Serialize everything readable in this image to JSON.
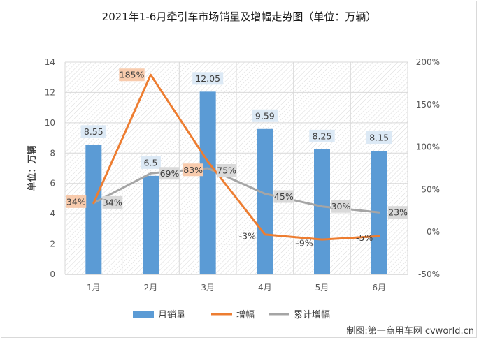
{
  "chart_data": {
    "type": "bar",
    "title": "2021年1-6月牵引车市场销量及增幅走势图（单位：万辆）",
    "ylabel": "单位：万辆",
    "categories": [
      "1月",
      "2月",
      "3月",
      "4月",
      "5月",
      "6月"
    ],
    "ylim": [
      0,
      14
    ],
    "y_ticks": [
      "0",
      "2",
      "4",
      "6",
      "8",
      "10",
      "12",
      "14"
    ],
    "y2lim": [
      -50,
      200
    ],
    "y2_ticks": [
      "-50%",
      "0%",
      "50%",
      "100%",
      "150%",
      "200%"
    ],
    "grid": true,
    "legend_position": "bottom",
    "series": [
      {
        "name": "月销量",
        "type": "bar",
        "axis": "left",
        "color": "#5b9bd5",
        "values": [
          8.55,
          6.5,
          12.05,
          9.59,
          8.25,
          8.15
        ],
        "labels": [
          "8.55",
          "6.5",
          "12.05",
          "9.59",
          "8.25",
          "8.15"
        ],
        "label_bg": "#dce9f5"
      },
      {
        "name": "增幅",
        "type": "line",
        "axis": "right",
        "color": "#ed7d31",
        "values": [
          34,
          185,
          83,
          -3,
          -9,
          -5
        ],
        "labels": [
          "34%",
          "185%",
          "83%",
          "-3%",
          "-9%",
          "-5%"
        ],
        "label_bg": [
          "#f8cbad",
          "#f8cbad",
          "#f8cbad",
          "",
          "",
          ""
        ]
      },
      {
        "name": "累计增幅",
        "type": "line",
        "axis": "right",
        "color": "#a5a5a5",
        "values": [
          34,
          69,
          75,
          45,
          30,
          23
        ],
        "labels": [
          "34%",
          "69%",
          "75%",
          "45%",
          "30%",
          "23%"
        ],
        "label_bg": "#d9d9d9"
      }
    ],
    "footer": "制图:第一商用车网 cvworld.cn"
  }
}
